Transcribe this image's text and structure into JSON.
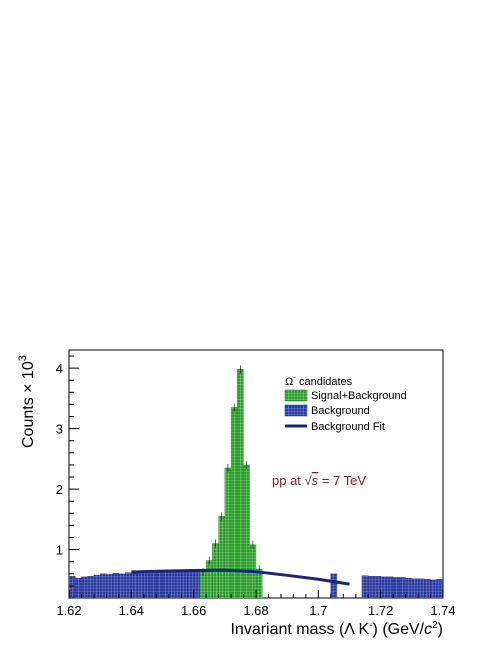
{
  "chart_data": {
    "type": "bar",
    "title": "",
    "x_label_main": "Invariant mass (Λ K",
    "x_label_sup": "-",
    "x_label_units": ") (GeV/",
    "x_label_c": "c",
    "x_label_sq": "2",
    "x_label_close": ")",
    "y_label_main": "Counts × 10",
    "y_label_exp": "3",
    "xlim": [
      1.62,
      1.74
    ],
    "ylim": [
      0.2,
      4.3
    ],
    "x_ticks": [
      "1.62",
      "1.64",
      "1.66",
      "1.68",
      "1.7",
      "1.72",
      "1.74"
    ],
    "y_ticks": [
      "1",
      "2",
      "3",
      "4"
    ],
    "x_tick_values": [
      1.62,
      1.64,
      1.66,
      1.68,
      1.7,
      1.72,
      1.74
    ],
    "y_tick_values": [
      1,
      2,
      3,
      4
    ],
    "bin_start": 1.62,
    "bin_width": 0.002,
    "signal_range": [
      1.662,
      1.682
    ],
    "series": [
      {
        "name": "Signal+Background",
        "color": "#2a9d2a",
        "values": [
          0.63,
          0.82,
          1.1,
          1.55,
          2.35,
          3.35,
          3.98,
          2.4,
          1.08,
          0.68
        ]
      },
      {
        "name": "Background",
        "color": "#2a3aa0",
        "values": [
          0.56,
          0.53,
          0.55,
          0.56,
          0.58,
          0.6,
          0.59,
          0.61,
          0.6,
          0.62,
          0.61,
          0.62,
          0.63,
          0.62,
          0.64,
          0.63,
          0.64,
          0.65,
          0.63,
          0.64,
          0.65,
          0.64,
          0.0,
          0.0,
          0.0,
          0.0,
          0.0,
          0.0,
          0.0,
          0.0,
          0.0,
          0.0,
          0.0,
          0.0,
          0.0,
          0.0,
          0.0,
          0.0,
          0.0,
          0.0,
          0.0,
          0.0,
          0.6,
          0.0,
          0.0,
          0.0,
          0.0,
          0.57,
          0.56,
          0.56,
          0.55,
          0.55,
          0.54,
          0.54,
          0.53,
          0.52,
          0.52,
          0.51,
          0.5,
          0.51,
          0.49,
          0.49,
          0.48,
          0.48,
          0.47,
          0.47,
          0.46,
          0.45,
          0.45,
          0.45,
          0.44,
          0.45,
          0.43,
          0.42,
          0.43,
          0.42,
          0.41,
          0.42,
          0.41,
          0.41,
          0.4,
          0.4,
          0.39,
          0.4,
          0.38,
          0.39,
          0.38,
          0.38,
          0.37,
          0.38
        ]
      },
      {
        "name": "Background Fit",
        "color": "#1a237e",
        "x": [
          1.64,
          1.65,
          1.66,
          1.67,
          1.68,
          1.69,
          1.7,
          1.71
        ],
        "values": [
          0.63,
          0.645,
          0.655,
          0.66,
          0.635,
          0.575,
          0.51,
          0.43
        ]
      }
    ],
    "legend": {
      "header_main": "Ω",
      "header_sup": "-",
      "header_rest": " candidates",
      "placement": "top-right"
    },
    "annotation": {
      "text_pre": "pp at ",
      "text_sqrt": "√",
      "text_s": "s",
      "text_post": " = 7 TeV",
      "color": "#8b1a1a"
    }
  }
}
